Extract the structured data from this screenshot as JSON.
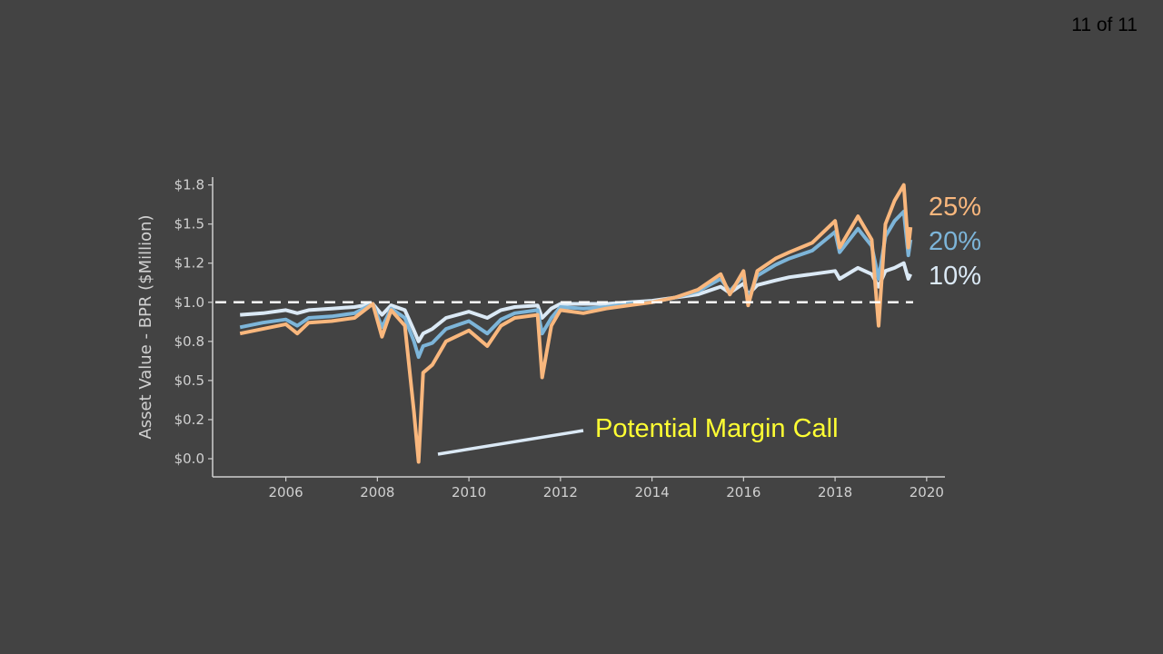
{
  "slide_number": "11 of 11",
  "chart_data": {
    "type": "line",
    "title": "",
    "xlabel": "",
    "ylabel": "Asset Value - BPR ($Million)",
    "xlim": [
      2004.4,
      2020.4
    ],
    "ylim": [
      -0.116,
      1.8
    ],
    "x_ticks": [
      2006,
      2008,
      2010,
      2012,
      2014,
      2016,
      2018,
      2020
    ],
    "x_tick_labels": [
      "2006",
      "2008",
      "2010",
      "2012",
      "2014",
      "2016",
      "2018",
      "2020"
    ],
    "y_ticks": [
      0,
      0.25,
      0.5,
      0.75,
      1.0,
      1.25,
      1.5,
      1.75
    ],
    "y_tick_labels": [
      "$0.0",
      "$0.2",
      "$0.5",
      "$0.8",
      "$1.0",
      "$1.2",
      "$1.5",
      "$1.8"
    ],
    "grid": false,
    "reference_line": {
      "y": 1.0,
      "style": "dashed",
      "color": "#ffffff"
    },
    "x": [
      2005.0,
      2005.5,
      2006.0,
      2006.25,
      2006.5,
      2007.0,
      2007.5,
      2007.9,
      2008.1,
      2008.3,
      2008.6,
      2008.8,
      2008.9,
      2009.0,
      2009.2,
      2009.5,
      2010.0,
      2010.4,
      2010.7,
      2011.0,
      2011.5,
      2011.6,
      2011.8,
      2012.0,
      2012.5,
      2013.0,
      2013.5,
      2014.0,
      2014.5,
      2015.0,
      2015.5,
      2015.7,
      2016.0,
      2016.1,
      2016.3,
      2016.7,
      2017.0,
      2017.5,
      2018.0,
      2018.1,
      2018.5,
      2018.8,
      2018.95,
      2019.1,
      2019.3,
      2019.5,
      2019.6,
      2019.65
    ],
    "series": [
      {
        "name": "10%",
        "color": "#dbe9f5",
        "values": [
          0.92,
          0.93,
          0.95,
          0.93,
          0.95,
          0.96,
          0.97,
          0.99,
          0.92,
          0.98,
          0.95,
          0.82,
          0.75,
          0.8,
          0.83,
          0.9,
          0.94,
          0.9,
          0.95,
          0.97,
          0.98,
          0.9,
          0.96,
          0.99,
          0.99,
          0.99,
          1.0,
          1.01,
          1.03,
          1.05,
          1.1,
          1.06,
          1.12,
          1.05,
          1.11,
          1.14,
          1.16,
          1.18,
          1.2,
          1.15,
          1.22,
          1.18,
          1.1,
          1.2,
          1.22,
          1.25,
          1.15,
          1.18
        ]
      },
      {
        "name": "20%",
        "color": "#7db5d9",
        "values": [
          0.84,
          0.87,
          0.89,
          0.85,
          0.9,
          0.91,
          0.93,
          0.99,
          0.84,
          0.96,
          0.9,
          0.75,
          0.65,
          0.72,
          0.74,
          0.83,
          0.88,
          0.8,
          0.89,
          0.93,
          0.95,
          0.8,
          0.9,
          0.97,
          0.96,
          0.97,
          0.99,
          1.0,
          1.03,
          1.07,
          1.15,
          1.07,
          1.17,
          1.02,
          1.17,
          1.24,
          1.28,
          1.33,
          1.45,
          1.32,
          1.47,
          1.36,
          1.15,
          1.42,
          1.52,
          1.58,
          1.3,
          1.4
        ]
      },
      {
        "name": "25%",
        "color": "#f9b77d",
        "values": [
          0.8,
          0.83,
          0.86,
          0.8,
          0.87,
          0.88,
          0.9,
          0.99,
          0.78,
          0.95,
          0.85,
          0.3,
          -0.02,
          0.55,
          0.6,
          0.75,
          0.82,
          0.72,
          0.85,
          0.9,
          0.92,
          0.52,
          0.85,
          0.95,
          0.93,
          0.96,
          0.98,
          1.0,
          1.03,
          1.08,
          1.18,
          1.05,
          1.2,
          0.98,
          1.2,
          1.28,
          1.32,
          1.38,
          1.52,
          1.35,
          1.55,
          1.4,
          0.85,
          1.5,
          1.65,
          1.75,
          1.35,
          1.48
        ]
      }
    ],
    "series_labels": [
      "25%",
      "20%",
      "10%"
    ],
    "annotation": {
      "text": "Potential Margin Call",
      "color": "#ffff33",
      "points_to": {
        "x": 2009.2,
        "y": 0.02
      }
    }
  }
}
